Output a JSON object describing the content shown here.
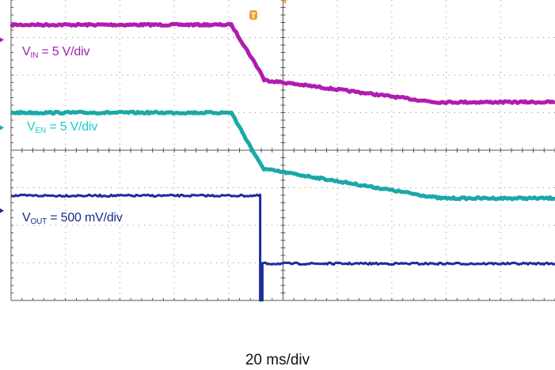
{
  "chart_data": {
    "type": "line",
    "title": "",
    "timebase": "20 ms/div",
    "grid": {
      "x_divisions": 10,
      "y_divisions": 8,
      "minor_ticks_per_division": 5
    },
    "x": {
      "unit": "div",
      "range": [
        0,
        10
      ]
    },
    "y": {
      "unit": "div",
      "range": [
        0,
        8
      ]
    },
    "trigger_marker": "T",
    "colors": {
      "grid": "#8a8a8a",
      "axes": "#555555",
      "trigger": "#f0a030"
    },
    "series": [
      {
        "name": "VIN",
        "label": {
          "main": "V",
          "sub": "IN",
          "rest": " = 5 V/div"
        },
        "color": "#b01cb0",
        "label_color": "#a020b0",
        "points": [
          [
            0,
            7.34
          ],
          [
            4.05,
            7.34
          ],
          [
            4.6,
            6.04
          ],
          [
            4.65,
            5.87
          ],
          [
            7.8,
            5.28
          ],
          [
            10,
            5.28
          ]
        ]
      },
      {
        "name": "VEN",
        "label": {
          "main": "V",
          "sub": "EN",
          "rest": " = 5 V/div"
        },
        "color": "#1aa8a8",
        "label_color": "#19cccc",
        "points": [
          [
            0,
            5.0
          ],
          [
            4.05,
            5.0
          ],
          [
            4.55,
            3.71
          ],
          [
            4.65,
            3.5
          ],
          [
            7.9,
            2.72
          ],
          [
            10,
            2.72
          ]
        ]
      },
      {
        "name": "VOUT",
        "label": {
          "main": "V",
          "sub": "OUT",
          "rest": " = 500 mV/div"
        },
        "color": "#1c2c9c",
        "label_color": "#1a2a8a",
        "points": [
          [
            0,
            2.79
          ],
          [
            4.58,
            2.79
          ],
          [
            4.58,
            0
          ],
          [
            4.62,
            0
          ],
          [
            4.62,
            0.98
          ],
          [
            10,
            0.98
          ]
        ]
      }
    ]
  }
}
